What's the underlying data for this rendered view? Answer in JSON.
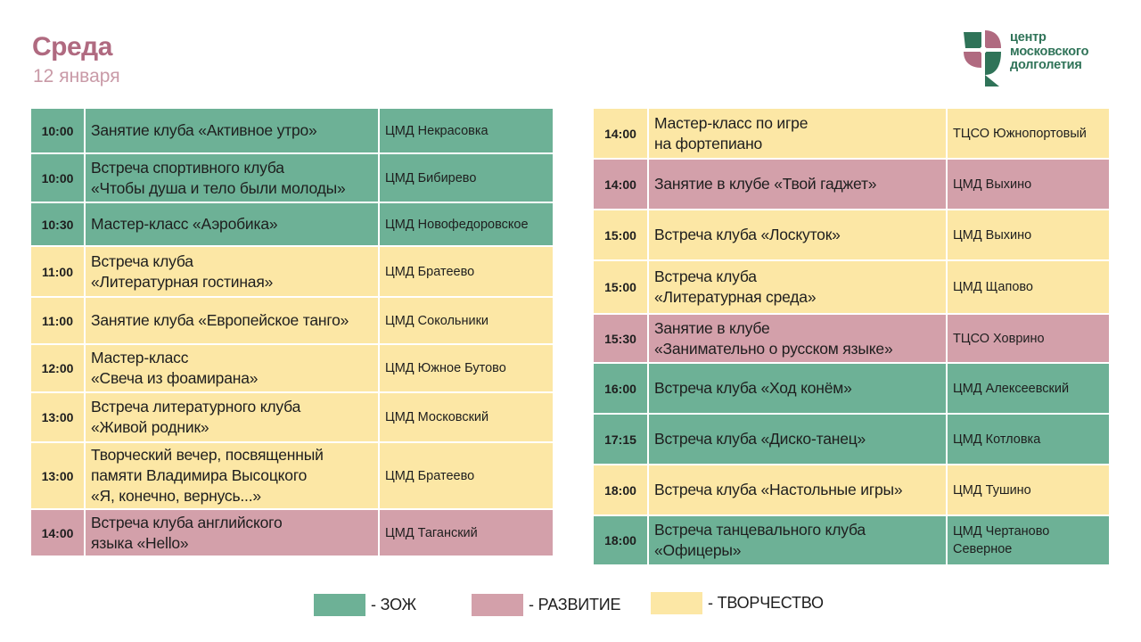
{
  "header": {
    "title": "Среда",
    "date": "12 января"
  },
  "logo": {
    "lines": [
      "центр",
      "московского",
      "долголетия"
    ]
  },
  "colors": {
    "green": "#6db196",
    "pink": "#d3a0aa",
    "yellow": "#fce7a5"
  },
  "left_rows": [
    {
      "time": "10:00",
      "event": [
        "Занятие клуба «Активное утро»"
      ],
      "place": [
        "ЦМД Некрасовка"
      ],
      "category": "green"
    },
    {
      "time": "10:00",
      "event": [
        "Встреча спортивного клуба",
        "«Чтобы душа и тело были молоды»"
      ],
      "place": [
        "ЦМД Бибирево"
      ],
      "category": "green"
    },
    {
      "time": "10:30",
      "event": [
        "Мастер-класс «Аэробика»"
      ],
      "place": [
        "ЦМД Новофедоровское"
      ],
      "category": "green"
    },
    {
      "time": "11:00",
      "event": [
        "Встреча клуба",
        "«Литературная гостиная»"
      ],
      "place": [
        "ЦМД Братеево"
      ],
      "category": "yellow"
    },
    {
      "time": "11:00",
      "event": [
        "Занятие клуба «Европейское танго»"
      ],
      "place": [
        "ЦМД Сокольники"
      ],
      "category": "yellow"
    },
    {
      "time": "12:00",
      "event": [
        "Мастер-класс",
        "«Свеча из фоамирана»"
      ],
      "place": [
        "ЦМД Южное Бутово"
      ],
      "category": "yellow"
    },
    {
      "time": "13:00",
      "event": [
        "Встреча литературного клуба",
        "«Живой родник»"
      ],
      "place": [
        "ЦМД Московский"
      ],
      "category": "yellow"
    },
    {
      "time": "13:00",
      "event": [
        "Творческий вечер, посвященный",
        "памяти Владимира Высоцкого",
        "«Я, конечно, вернусь...»"
      ],
      "place": [
        "ЦМД Братеево"
      ],
      "category": "yellow"
    },
    {
      "time": "14:00",
      "event": [
        "Встреча клуба английского",
        "языка «Hello»"
      ],
      "place": [
        "ЦМД Таганский"
      ],
      "category": "pink"
    }
  ],
  "right_rows": [
    {
      "time": "14:00",
      "event": [
        "Мастер-класс по игре",
        "на фортепиано"
      ],
      "place": [
        "ТЦСО Южнопортовый"
      ],
      "category": "yellow"
    },
    {
      "time": "14:00",
      "event": [
        "Занятие в клубе «Твой гаджет»"
      ],
      "place": [
        "ЦМД Выхино"
      ],
      "category": "pink"
    },
    {
      "time": "15:00",
      "event": [
        "Встреча клуба «Лоскуток»"
      ],
      "place": [
        "ЦМД Выхино"
      ],
      "category": "yellow"
    },
    {
      "time": "15:00",
      "event": [
        "Встреча клуба",
        "«Литературная среда»"
      ],
      "place": [
        "ЦМД Щапово"
      ],
      "category": "yellow"
    },
    {
      "time": "15:30",
      "event": [
        "Занятие в клубе",
        "«Занимательно о русском языке»"
      ],
      "place": [
        "ТЦСО Ховрино"
      ],
      "category": "pink"
    },
    {
      "time": "16:00",
      "event": [
        "Встреча клуба «Ход конём»"
      ],
      "place": [
        "ЦМД Алексеевский"
      ],
      "category": "green"
    },
    {
      "time": "17:15",
      "event": [
        "Встреча клуба «Диско-танец»"
      ],
      "place": [
        "ЦМД Котловка"
      ],
      "category": "green"
    },
    {
      "time": "18:00",
      "event": [
        "Встреча клуба «Настольные игры»"
      ],
      "place": [
        "ЦМД Тушино"
      ],
      "category": "yellow"
    },
    {
      "time": "18:00",
      "event": [
        "Встреча танцевального клуба",
        "«Офицеры»"
      ],
      "place": [
        "ЦМД Чертаново",
        "Северное"
      ],
      "category": "green"
    }
  ],
  "legend": [
    {
      "category": "green",
      "label": "- ЗОЖ"
    },
    {
      "category": "pink",
      "label": "- РАЗВИТИЕ"
    },
    {
      "category": "yellow",
      "label": "- ТВОРЧЕСТВО"
    }
  ]
}
